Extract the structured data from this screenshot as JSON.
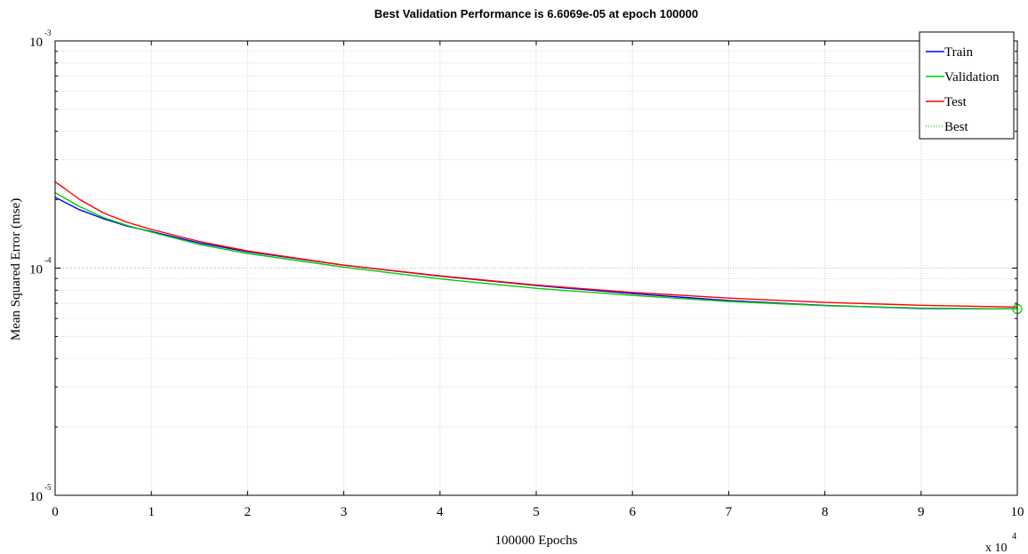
{
  "chart_data": {
    "type": "line",
    "title": "Best Validation Performance is 6.6069e-05 at epoch 100000",
    "xlabel": "100000 Epochs",
    "ylabel": "Mean Squared Error  (mse)",
    "x_multiplier_label": "x 10",
    "x_multiplier_exponent": "4",
    "x_scale": "linear",
    "y_scale": "log",
    "xlim": [
      0,
      100000
    ],
    "ylim": [
      1e-05,
      0.001
    ],
    "grid": true,
    "legend_position": "top-right",
    "x_ticks": [
      {
        "value": 0,
        "label": "0"
      },
      {
        "value": 10000,
        "label": "1"
      },
      {
        "value": 20000,
        "label": "2"
      },
      {
        "value": 30000,
        "label": "3"
      },
      {
        "value": 40000,
        "label": "4"
      },
      {
        "value": 50000,
        "label": "5"
      },
      {
        "value": 60000,
        "label": "6"
      },
      {
        "value": 70000,
        "label": "7"
      },
      {
        "value": 80000,
        "label": "8"
      },
      {
        "value": 90000,
        "label": "9"
      },
      {
        "value": 100000,
        "label": "10"
      }
    ],
    "y_ticks": [
      {
        "value": 1e-05,
        "base": "10",
        "exp": "-5"
      },
      {
        "value": 0.0001,
        "base": "10",
        "exp": "-4"
      },
      {
        "value": 0.001,
        "base": "10",
        "exp": "-3"
      }
    ],
    "series": [
      {
        "name": "Train",
        "color": "#0000ff",
        "style": "solid",
        "x": [
          0,
          1000,
          2500,
          5000,
          7500,
          10000,
          15000,
          20000,
          30000,
          40000,
          50000,
          60000,
          70000,
          80000,
          90000,
          100000
        ],
        "y": [
          0.000205,
          0.000195,
          0.000181,
          0.000165,
          0.000153,
          0.000145,
          0.000129,
          0.000118,
          0.000103,
          9.22e-05,
          8.38e-05,
          7.72e-05,
          7.2e-05,
          6.85e-05,
          6.64e-05,
          6.62e-05
        ]
      },
      {
        "name": "Validation",
        "color": "#00cc00",
        "style": "solid",
        "x": [
          0,
          1000,
          2500,
          5000,
          7500,
          10000,
          15000,
          20000,
          30000,
          40000,
          50000,
          60000,
          70000,
          80000,
          90000,
          100000
        ],
        "y": [
          0.000215,
          0.000203,
          0.000187,
          0.000167,
          0.000154,
          0.000144,
          0.000127,
          0.000116,
          0.000101,
          8.97e-05,
          8.15e-05,
          7.58e-05,
          7.13e-05,
          6.83e-05,
          6.67e-05,
          6.61e-05
        ]
      },
      {
        "name": "Test",
        "color": "#ff0000",
        "style": "solid",
        "x": [
          0,
          1000,
          2500,
          5000,
          7500,
          10000,
          15000,
          20000,
          30000,
          40000,
          50000,
          60000,
          70000,
          80000,
          90000,
          100000
        ],
        "y": [
          0.00024,
          0.000224,
          0.000201,
          0.000175,
          0.000159,
          0.000148,
          0.000131,
          0.000119,
          0.000103,
          9.25e-05,
          8.42e-05,
          7.82e-05,
          7.38e-05,
          7.06e-05,
          6.86e-05,
          6.74e-05
        ]
      },
      {
        "name": "Best",
        "color": "#00aa00",
        "style": "dotted",
        "x": [
          100000,
          100000
        ],
        "y": [
          1e-05,
          0.001
        ]
      }
    ],
    "best_marker": {
      "x": 100000,
      "y": 6.6069e-05,
      "color": "#00cc00"
    }
  }
}
